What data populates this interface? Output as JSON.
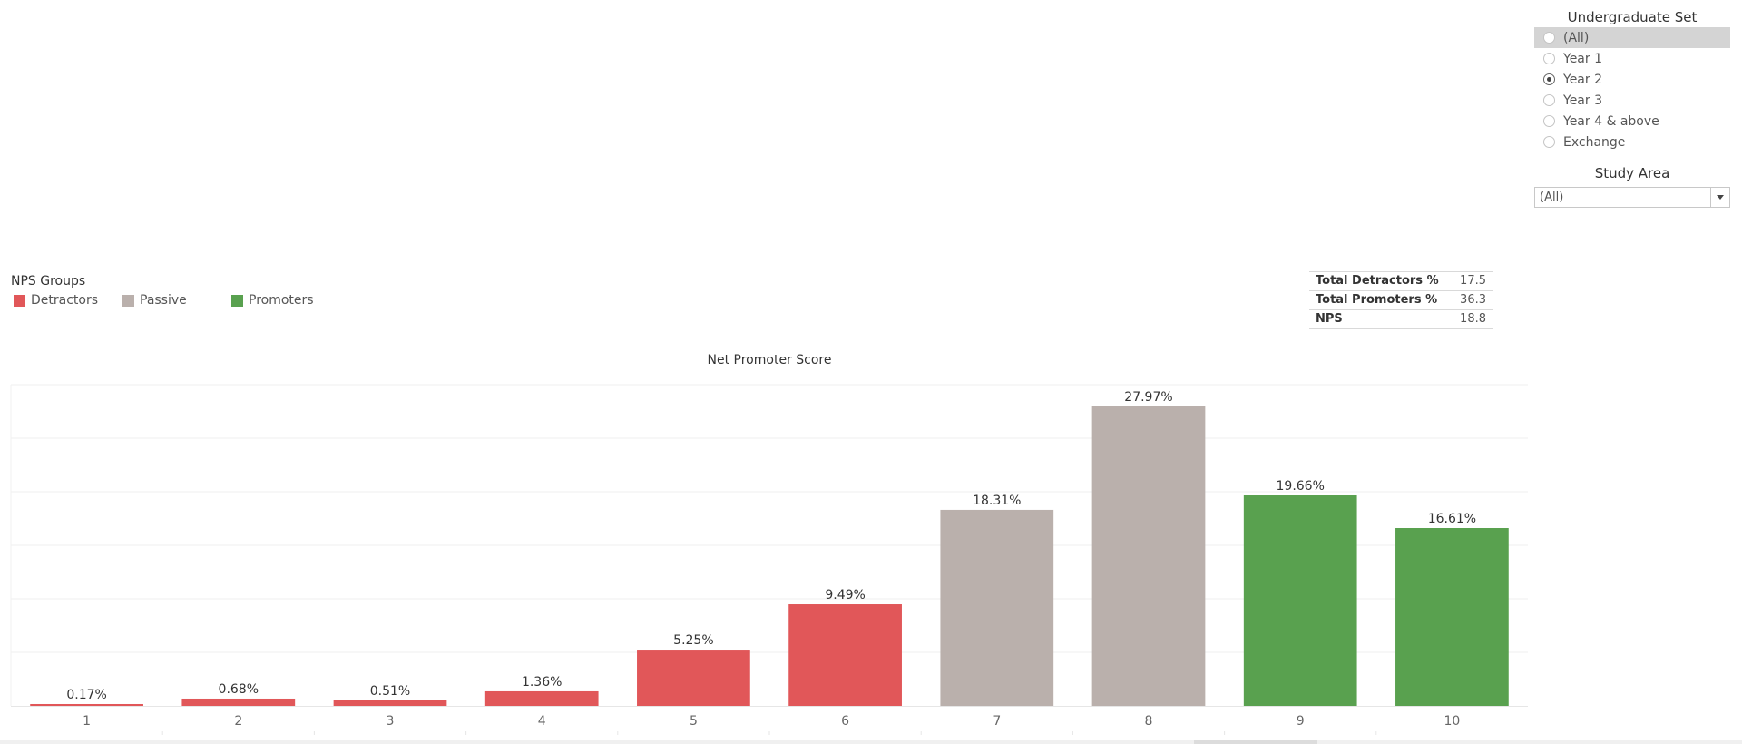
{
  "filters": {
    "undergraduate_set": {
      "title": "Undergraduate Set",
      "options": [
        {
          "label": "(All)",
          "selected": false
        },
        {
          "label": "Year 1",
          "selected": false
        },
        {
          "label": "Year 2",
          "selected": true
        },
        {
          "label": "Year 3",
          "selected": false
        },
        {
          "label": "Year 4 & above",
          "selected": false
        },
        {
          "label": "Exchange",
          "selected": false
        }
      ]
    },
    "study_area": {
      "title": "Study Area",
      "value": "(All)"
    }
  },
  "legend": {
    "title": "NPS Groups",
    "items": [
      {
        "label": "Detractors",
        "color": "#e15759"
      },
      {
        "label": "Passive",
        "color": "#bab0ac"
      },
      {
        "label": "Promoters",
        "color": "#59a14f"
      }
    ]
  },
  "summary": [
    {
      "label": "Total Detractors %",
      "value": "17.5"
    },
    {
      "label": "Total Promoters %",
      "value": "36.3"
    },
    {
      "label": "NPS",
      "value": "18.8"
    }
  ],
  "chart_data": {
    "type": "bar",
    "title": "Net Promoter Score",
    "categories": [
      "1",
      "2",
      "3",
      "4",
      "5",
      "6",
      "7",
      "8",
      "9",
      "10"
    ],
    "values": [
      0.17,
      0.68,
      0.51,
      1.36,
      5.25,
      9.49,
      18.31,
      27.97,
      19.66,
      16.61
    ],
    "labels": [
      "0.17%",
      "0.68%",
      "0.51%",
      "1.36%",
      "5.25%",
      "9.49%",
      "18.31%",
      "27.97%",
      "19.66%",
      "16.61%"
    ],
    "groups": [
      "Detractors",
      "Detractors",
      "Detractors",
      "Detractors",
      "Detractors",
      "Detractors",
      "Passive",
      "Passive",
      "Promoters",
      "Promoters"
    ],
    "ylim": [
      0,
      30
    ],
    "grid": true,
    "xlabel": "",
    "ylabel": ""
  }
}
